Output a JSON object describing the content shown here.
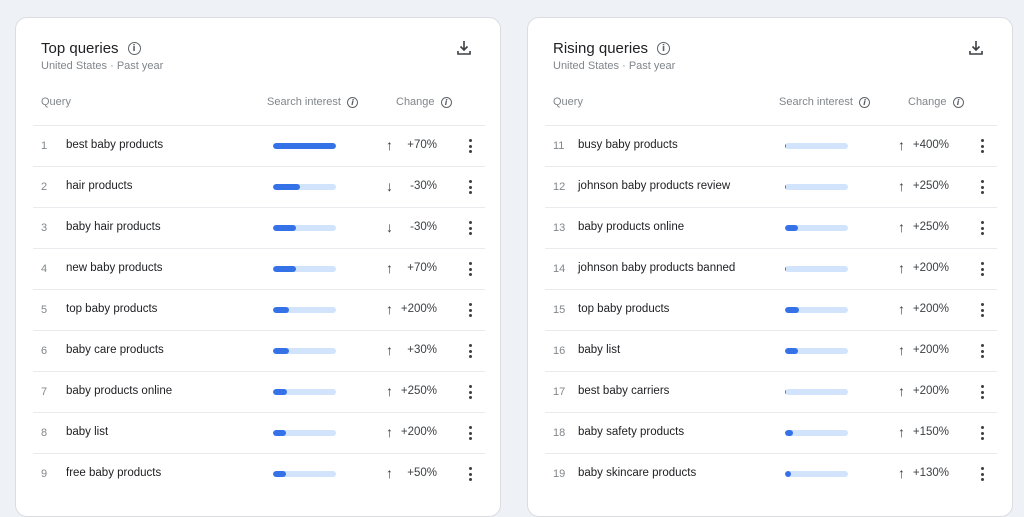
{
  "colors": {
    "bar_fill": "#3572e8",
    "bar_track": "#d2e3fc",
    "background": "#eef1f6"
  },
  "top": {
    "title": "Top queries",
    "region": "United States",
    "separator": "·",
    "period": "Past year",
    "headers": {
      "query": "Query",
      "interest": "Search interest",
      "change": "Change"
    },
    "rows": [
      {
        "num": "1",
        "query": "best baby products",
        "interest": 100,
        "direction": "up",
        "change": "+70%"
      },
      {
        "num": "2",
        "query": "hair products",
        "interest": 43,
        "direction": "down",
        "change": "-30%"
      },
      {
        "num": "3",
        "query": "baby hair products",
        "interest": 37,
        "direction": "down",
        "change": "-30%"
      },
      {
        "num": "4",
        "query": "new baby products",
        "interest": 37,
        "direction": "up",
        "change": "+70%"
      },
      {
        "num": "5",
        "query": "top baby products",
        "interest": 25,
        "direction": "up",
        "change": "+200%"
      },
      {
        "num": "6",
        "query": "baby care products",
        "interest": 25,
        "direction": "up",
        "change": "+30%"
      },
      {
        "num": "7",
        "query": "baby products online",
        "interest": 22,
        "direction": "up",
        "change": "+250%"
      },
      {
        "num": "8",
        "query": "baby list",
        "interest": 21,
        "direction": "up",
        "change": "+200%"
      },
      {
        "num": "9",
        "query": "free baby products",
        "interest": 20,
        "direction": "up",
        "change": "+50%"
      }
    ]
  },
  "rising": {
    "title": "Rising queries",
    "region": "United States",
    "separator": "·",
    "period": "Past year",
    "headers": {
      "query": "Query",
      "interest": "Search interest",
      "change": "Change"
    },
    "rows": [
      {
        "num": "11",
        "query": "busy baby products",
        "interest": 2,
        "direction": "up",
        "change": "+400%"
      },
      {
        "num": "12",
        "query": "johnson baby products review",
        "interest": 2,
        "direction": "up",
        "change": "+250%"
      },
      {
        "num": "13",
        "query": "baby products online",
        "interest": 21,
        "direction": "up",
        "change": "+250%"
      },
      {
        "num": "14",
        "query": "johnson baby products banned",
        "interest": 2,
        "direction": "up",
        "change": "+200%"
      },
      {
        "num": "15",
        "query": "top baby products",
        "interest": 23,
        "direction": "up",
        "change": "+200%"
      },
      {
        "num": "16",
        "query": "baby list",
        "interest": 20,
        "direction": "up",
        "change": "+200%"
      },
      {
        "num": "17",
        "query": "best baby carriers",
        "interest": 2,
        "direction": "up",
        "change": "+200%"
      },
      {
        "num": "18",
        "query": "baby safety products",
        "interest": 12,
        "direction": "up",
        "change": "+150%"
      },
      {
        "num": "19",
        "query": "baby skincare products",
        "interest": 10,
        "direction": "up",
        "change": "+130%"
      }
    ]
  }
}
